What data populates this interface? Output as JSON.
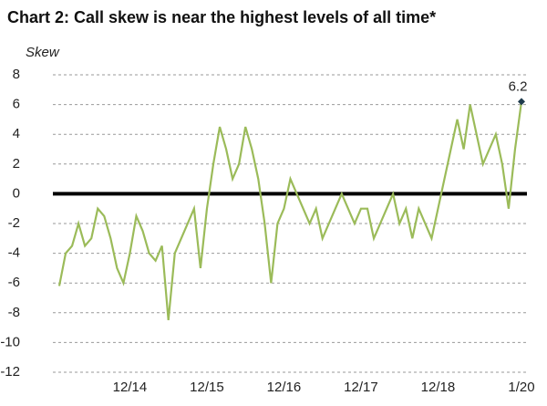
{
  "chart_data": {
    "type": "line",
    "title": "Chart 2: Call skew is near the highest levels of all time*",
    "y_label": "Skew",
    "categories": [
      null,
      null,
      null,
      null,
      null,
      null,
      null,
      null,
      null,
      null,
      null,
      "12/14",
      null,
      null,
      null,
      null,
      null,
      null,
      null,
      null,
      null,
      null,
      null,
      "12/15",
      null,
      null,
      null,
      null,
      null,
      null,
      null,
      null,
      null,
      null,
      null,
      "12/16",
      null,
      null,
      null,
      null,
      null,
      null,
      null,
      null,
      null,
      null,
      null,
      "12/17",
      null,
      null,
      null,
      null,
      null,
      null,
      null,
      null,
      null,
      null,
      null,
      "12/18",
      null,
      null,
      null,
      null,
      null,
      null,
      null,
      null,
      null,
      null,
      null,
      null,
      "1/20"
    ],
    "series": [
      {
        "name": "Skew",
        "color": "#9bbb59",
        "values": [
          -6.2,
          -4,
          -3.5,
          -2,
          -3.5,
          -3,
          -1,
          -1.5,
          -3,
          -5,
          -6,
          -4,
          -1.5,
          -2.5,
          -4,
          -4.5,
          -3.5,
          -8.5,
          -4,
          -3,
          -2,
          -1,
          -5,
          -1,
          2,
          4.5,
          3,
          1,
          2,
          4.5,
          3,
          1,
          -2,
          -6,
          -2,
          -1,
          1,
          0,
          -1,
          -2,
          -1,
          -3,
          -2,
          -1,
          0,
          -1,
          -2,
          -1,
          -1,
          -3,
          -2,
          -1,
          0,
          -2,
          -1,
          -3,
          -1,
          -2,
          -3,
          -1,
          1,
          3,
          5,
          3,
          6,
          4,
          2,
          3,
          4,
          2,
          -1,
          3,
          6.2
        ]
      }
    ],
    "annotation": "6.2",
    "ylim": [
      -12,
      8
    ],
    "yticks": [
      -12,
      -10,
      -8,
      -6,
      -4,
      -2,
      0,
      2,
      4,
      6,
      8
    ],
    "grid": true
  }
}
